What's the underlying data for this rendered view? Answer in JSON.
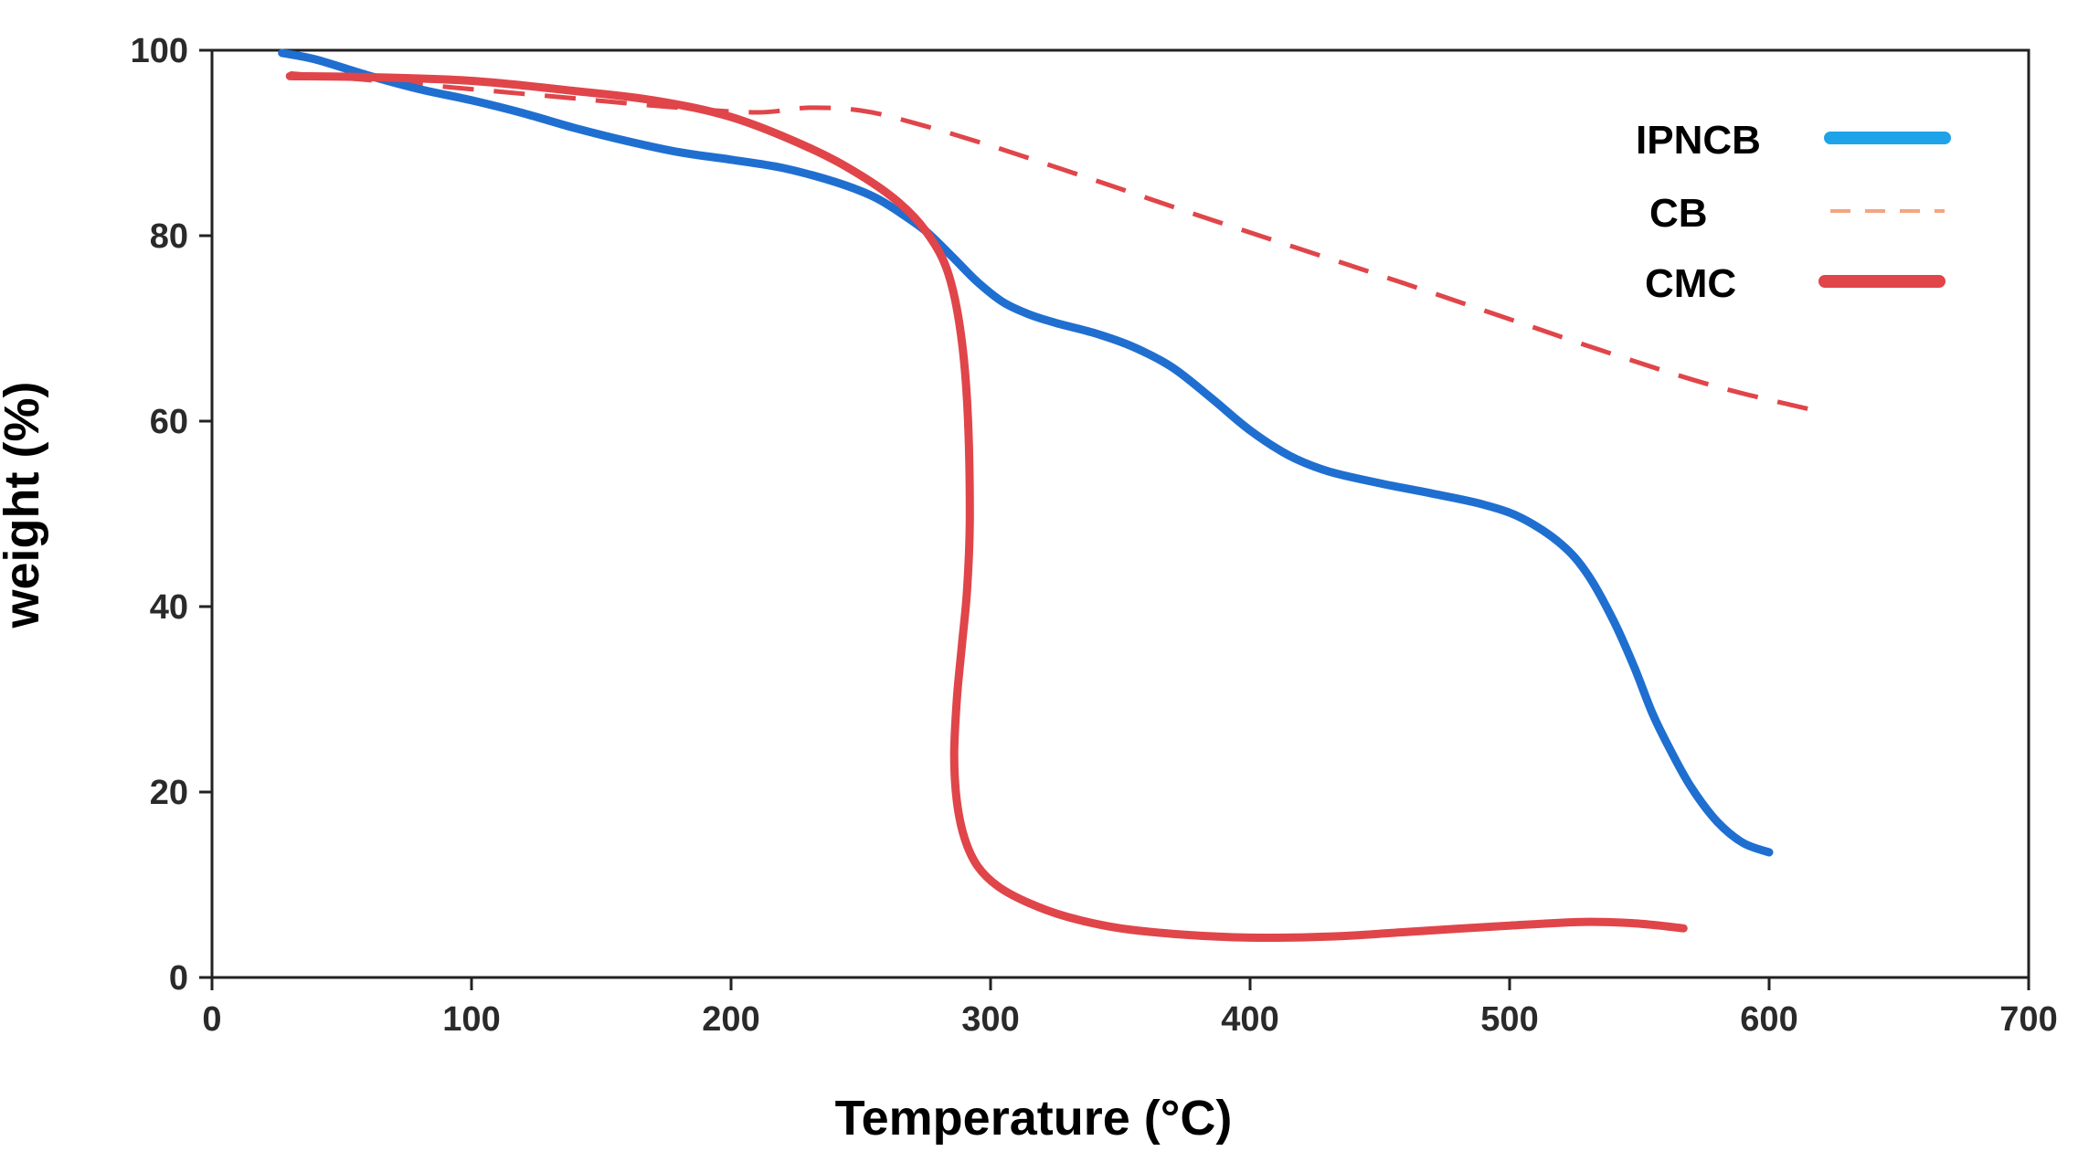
{
  "chart_data": {
    "type": "line",
    "title": "",
    "xlabel": "Temperature",
    "xlabel_unit": "(°C)",
    "ylabel": "weight (%)",
    "xlim": [
      0,
      700
    ],
    "ylim": [
      0,
      100
    ],
    "xticks": [
      0,
      100,
      200,
      300,
      400,
      500,
      600,
      700
    ],
    "yticks": [
      0,
      20,
      40,
      60,
      80,
      100
    ],
    "grid": false,
    "legend_position": "top-right",
    "series": [
      {
        "name": "IPNCB",
        "color": "#1f6fd1",
        "legend_color": "#1fa3e8",
        "style": "solid-thick",
        "x": [
          27,
          40,
          60,
          80,
          100,
          120,
          140,
          160,
          180,
          200,
          220,
          240,
          255,
          265,
          275,
          285,
          295,
          305,
          315,
          325,
          340,
          355,
          370,
          385,
          400,
          415,
          430,
          450,
          470,
          490,
          505,
          520,
          530,
          540,
          548,
          555,
          562,
          570,
          580,
          590,
          600
        ],
        "y": [
          99.7,
          99,
          97.3,
          95.8,
          94.6,
          93.2,
          91.6,
          90.2,
          89,
          88.2,
          87.3,
          85.8,
          84.2,
          82.5,
          80.5,
          77.8,
          75,
          72.8,
          71.5,
          70.6,
          69.5,
          68,
          65.8,
          62.5,
          59,
          56.3,
          54.6,
          53.3,
          52.2,
          51,
          49.5,
          46.7,
          43.5,
          38.5,
          33.5,
          28.5,
          24.5,
          20.5,
          16.8,
          14.5,
          13.5
        ]
      },
      {
        "name": "CB",
        "color": "#e0454a",
        "legend_color": "#f4a582",
        "style": "dashed",
        "x": [
          30,
          60,
          100,
          140,
          180,
          210,
          230,
          250,
          270,
          300,
          340,
          380,
          420,
          460,
          500,
          540,
          580,
          620
        ],
        "y": [
          97.5,
          96.8,
          95.8,
          94.8,
          93.8,
          93.3,
          93.8,
          93.5,
          92.2,
          89.7,
          86,
          82.2,
          78.5,
          74.8,
          71,
          67.2,
          63.7,
          61
        ]
      },
      {
        "name": "CMC",
        "color": "#e0454a",
        "legend_color": "#e0454a",
        "style": "solid-thick",
        "x": [
          30,
          60,
          100,
          140,
          170,
          200,
          230,
          250,
          265,
          275,
          283,
          288,
          291,
          292,
          291,
          289,
          287,
          286,
          287,
          290,
          295,
          303,
          315,
          330,
          350,
          375,
          400,
          430,
          460,
          500,
          530,
          550,
          567
        ],
        "y": [
          97.2,
          97.1,
          96.7,
          95.6,
          94.6,
          92.8,
          89.5,
          86.5,
          83.5,
          80.5,
          76.5,
          70.5,
          62,
          50,
          42,
          36,
          30,
          24,
          19,
          15,
          12,
          9.8,
          8,
          6.5,
          5.3,
          4.6,
          4.3,
          4.4,
          4.9,
          5.6,
          6,
          5.8,
          5.3
        ]
      }
    ]
  }
}
